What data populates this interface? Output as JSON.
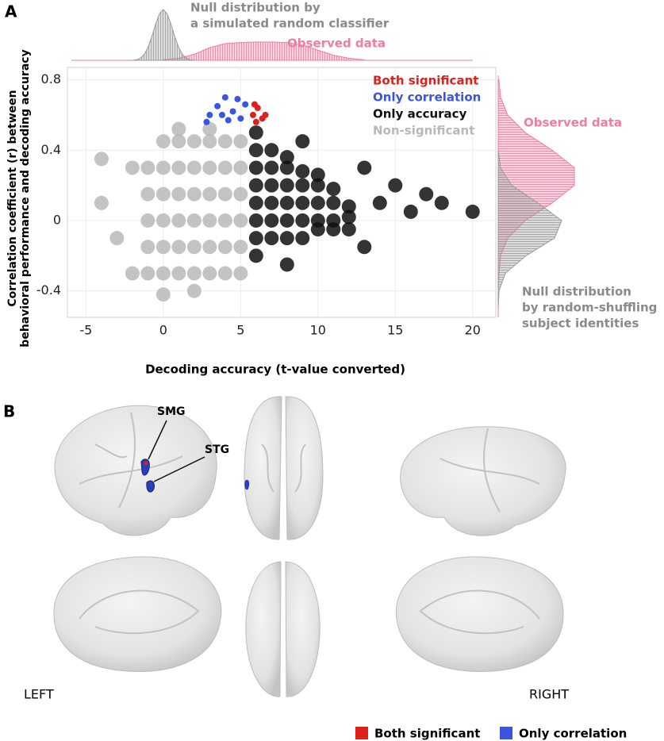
{
  "panel_labels": [
    "A",
    "B"
  ],
  "chart_data": [
    {
      "type": "scatter",
      "x_label": "Decoding accuracy (t-value converted)",
      "y_label": [
        "Correlation coefficient (r) between",
        "behavioral performance and decoding accuracy"
      ],
      "xlim": [
        -6.2,
        21.5
      ],
      "ylim": [
        -0.55,
        0.87
      ],
      "xticks": [
        -5,
        0,
        5,
        10,
        15,
        20
      ],
      "yticks": [
        -0.4,
        0,
        0.4,
        0.8
      ],
      "grid": true,
      "legend": "top-right",
      "series": [
        {
          "name": "Both significant",
          "color": "#e0201b",
          "x": [
            5.8,
            6.1,
            6.4,
            6.0,
            6.6,
            5.9
          ],
          "y": [
            0.6,
            0.64,
            0.58,
            0.56,
            0.6,
            0.66
          ]
        },
        {
          "name": "Only correlation",
          "color": "#3a55e0",
          "x": [
            3.0,
            3.5,
            4.0,
            4.5,
            5.0,
            5.3,
            4.2,
            3.8,
            2.8,
            4.8
          ],
          "y": [
            0.6,
            0.65,
            0.7,
            0.62,
            0.58,
            0.66,
            0.57,
            0.6,
            0.56,
            0.69
          ]
        },
        {
          "name": "Only accuracy",
          "color": "#111111",
          "x": [
            6,
            7,
            8,
            9,
            10,
            11,
            12,
            6,
            7,
            8,
            9,
            10,
            11,
            12,
            6,
            7,
            8,
            9,
            10,
            11,
            12,
            6,
            7,
            8,
            9,
            10,
            11,
            6,
            7,
            8,
            9,
            10,
            6,
            7,
            8,
            14,
            16,
            18,
            20,
            13,
            15,
            6,
            8,
            9,
            6,
            13,
            17
          ],
          "y": [
            -0.1,
            -0.1,
            -0.1,
            -0.1,
            -0.05,
            -0.05,
            -0.05,
            0,
            0,
            0,
            0,
            0,
            0,
            0.02,
            0.1,
            0.1,
            0.1,
            0.1,
            0.1,
            0.1,
            0.08,
            0.2,
            0.2,
            0.2,
            0.2,
            0.2,
            0.18,
            0.3,
            0.3,
            0.3,
            0.28,
            0.26,
            0.4,
            0.4,
            0.36,
            0.1,
            0.05,
            0.1,
            0.05,
            -0.15,
            0.2,
            -0.2,
            -0.25,
            0.45,
            0.5,
            0.3,
            0.15
          ]
        },
        {
          "name": "Non-significant",
          "color": "#b8b8b8",
          "x": [
            -1,
            0,
            1,
            2,
            3,
            4,
            5,
            -1,
            0,
            1,
            2,
            3,
            4,
            5,
            -1,
            0,
            1,
            2,
            3,
            4,
            5,
            -1,
            0,
            1,
            2,
            3,
            4,
            5,
            -1,
            0,
            1,
            2,
            3,
            4,
            5,
            0,
            1,
            2,
            3,
            4,
            5,
            -4,
            -3,
            -2,
            -4,
            0,
            2,
            -2,
            1,
            3
          ],
          "y": [
            -0.3,
            -0.3,
            -0.3,
            -0.3,
            -0.3,
            -0.3,
            -0.3,
            -0.15,
            -0.15,
            -0.15,
            -0.15,
            -0.15,
            -0.15,
            -0.15,
            0,
            0,
            0,
            0,
            0,
            0,
            0,
            0.15,
            0.15,
            0.15,
            0.15,
            0.15,
            0.15,
            0.15,
            0.3,
            0.3,
            0.3,
            0.3,
            0.3,
            0.3,
            0.3,
            0.45,
            0.45,
            0.45,
            0.45,
            0.45,
            0.45,
            0.35,
            -0.1,
            -0.3,
            0.1,
            -0.42,
            -0.4,
            0.3,
            0.52,
            0.52
          ]
        }
      ]
    },
    {
      "type": "area",
      "orientation": "vertical",
      "series": [
        {
          "name": "Observed data",
          "color": "#f07ca0",
          "x": [
            0,
            1,
            2,
            3,
            4,
            5,
            6,
            7,
            8,
            9,
            10,
            11,
            12,
            13
          ],
          "values": [
            0.01,
            0.04,
            0.12,
            0.25,
            0.33,
            0.35,
            0.36,
            0.36,
            0.35,
            0.3,
            0.2,
            0.1,
            0.04,
            0.01
          ]
        },
        {
          "name": "Null distribution by a simulated random classifier",
          "color": "#9a9a9a",
          "x": [
            -2,
            -1.75,
            -1.5,
            -1.25,
            -1,
            -0.75,
            -0.5,
            -0.25,
            0,
            0.25,
            0.5,
            0.75,
            1,
            1.25,
            1.5,
            1.75,
            2
          ],
          "values": [
            0,
            0.01,
            0.04,
            0.11,
            0.25,
            0.46,
            0.71,
            0.92,
            1,
            0.92,
            0.71,
            0.46,
            0.25,
            0.11,
            0.04,
            0.01,
            0
          ]
        }
      ],
      "annotations": [
        {
          "lines": [
            "Null distribution by",
            "a simulated random classifier"
          ],
          "color": "#8a8a8a"
        },
        {
          "lines": [
            "Observed data"
          ],
          "color": "#f07ca0"
        }
      ]
    },
    {
      "type": "area",
      "orientation": "horizontal",
      "series": [
        {
          "name": "Observed data",
          "color": "#f07ca0",
          "y": [
            -0.5,
            -0.4,
            -0.3,
            -0.2,
            -0.1,
            0,
            0.1,
            0.2,
            0.3,
            0.4,
            0.5,
            0.6,
            0.7,
            0.8
          ],
          "values": [
            0,
            0,
            0.01,
            0.03,
            0.12,
            0.34,
            0.68,
            0.96,
            0.96,
            0.68,
            0.34,
            0.12,
            0.03,
            0.01
          ]
        },
        {
          "name": "Null distribution by random-shuffling subject identities",
          "color": "#9a9a9a",
          "y": [
            -0.5,
            -0.4,
            -0.3,
            -0.2,
            -0.1,
            0,
            0.1,
            0.2,
            0.3,
            0.4
          ],
          "values": [
            0,
            0.01,
            0.09,
            0.35,
            0.71,
            0.8,
            0.5,
            0.17,
            0.03,
            0
          ]
        }
      ],
      "annotations": [
        {
          "lines": [
            "Observed data"
          ],
          "color": "#f07ca0"
        },
        {
          "lines": [
            "Null distribution",
            "by random-shuffling",
            "subject identities"
          ],
          "color": "#8a8a8a"
        }
      ]
    }
  ],
  "brain_panel": {
    "labels": {
      "smg": "SMG",
      "stg": "STG",
      "left": "LEFT",
      "right": "RIGHT"
    },
    "legend": [
      {
        "name": "Both significant",
        "color": "#e0201b"
      },
      {
        "name": "Only correlation",
        "color": "#3a55e0"
      }
    ]
  }
}
